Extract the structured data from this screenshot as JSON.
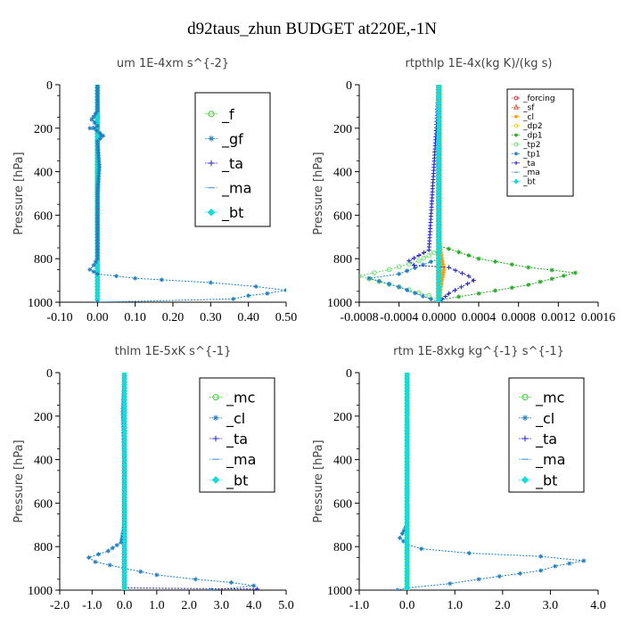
{
  "figure": {
    "title": "d92taus_zhun  BUDGET at220E,-1N"
  },
  "chart_data": [
    {
      "type": "line",
      "title": "um   1E-4xm s^{-2}",
      "ylabel": "Pressure [hPa]",
      "xlim": [
        -0.1,
        0.5
      ],
      "ylim": [
        1000,
        0
      ],
      "xticks": [
        "-0.10",
        "0.00",
        "0.10",
        "0.20",
        "0.30",
        "0.40",
        "0.50"
      ],
      "xtick_values": [
        -0.1,
        0.0,
        0.1,
        0.2,
        0.3,
        0.4,
        0.5
      ],
      "yticks": [
        "0",
        "200",
        "400",
        "600",
        "800",
        "1000"
      ],
      "ytick_values": [
        0,
        200,
        400,
        600,
        800,
        1000
      ],
      "legend_position": "top-right",
      "series": [
        {
          "name": "_f",
          "color": "#22cc22",
          "marker": "circle",
          "points": [
            [
              0.0,
              0
            ],
            [
              0.0,
              100
            ],
            [
              0.0,
              200
            ],
            [
              0.0,
              300
            ],
            [
              0.0,
              400
            ],
            [
              0.0,
              500
            ],
            [
              0.0,
              600
            ],
            [
              0.0,
              700
            ],
            [
              0.0,
              800
            ],
            [
              0.0,
              900
            ],
            [
              0.0,
              1000
            ]
          ]
        },
        {
          "name": "_gf",
          "color": "#1f7fbf",
          "marker": "star",
          "points": [
            [
              0.0,
              0
            ],
            [
              0.0,
              150
            ],
            [
              -0.015,
              160
            ],
            [
              0.0,
              180
            ],
            [
              -0.02,
              200
            ],
            [
              0.0,
              215
            ],
            [
              0.01,
              235
            ],
            [
              0.0,
              250
            ],
            [
              0.0,
              380
            ],
            [
              0.0,
              500
            ],
            [
              0.0,
              800
            ],
            [
              0.0,
              1000
            ]
          ]
        },
        {
          "name": "_ta",
          "color": "#2222cc",
          "marker": "plus",
          "points": [
            [
              0.0,
              0
            ],
            [
              0.0,
              1000
            ]
          ]
        },
        {
          "name": "_ma",
          "color": "#5aa0d8",
          "marker": "dash",
          "points": [
            [
              0.0,
              0
            ],
            [
              0.0,
              1000
            ]
          ]
        },
        {
          "name": "_bt",
          "color": "#11dddd",
          "marker": "diamond",
          "points": [
            [
              0.0,
              0
            ],
            [
              0.0,
              1000
            ]
          ]
        },
        {
          "name": "",
          "color": "#1f7fbf",
          "marker": "star",
          "points": [
            [
              0.0,
              0
            ],
            [
              0.0,
              120
            ],
            [
              -0.015,
              160
            ],
            [
              0.0,
              190
            ],
            [
              -0.01,
              200
            ],
            [
              0.015,
              235
            ],
            [
              0.0,
              260
            ],
            [
              0.005,
              380
            ],
            [
              0.0,
              500
            ],
            [
              0.0,
              700
            ],
            [
              0.0,
              800
            ],
            [
              -0.01,
              830
            ],
            [
              -0.02,
              850
            ],
            [
              -0.01,
              860
            ],
            [
              0.0,
              870
            ],
            [
              0.05,
              880
            ],
            [
              0.1,
              890
            ],
            [
              0.17,
              897
            ],
            [
              0.3,
              910
            ],
            [
              0.42,
              928
            ],
            [
              0.5,
              945
            ],
            [
              0.45,
              960
            ],
            [
              0.4,
              970
            ],
            [
              0.36,
              985
            ],
            [
              0.0,
              1000
            ]
          ]
        }
      ]
    },
    {
      "type": "line",
      "title": "rtpthlp   1E-4x(kg K)/(kg s)",
      "ylabel": "Pressure [hPa]",
      "xlim": [
        -0.0008,
        0.0016
      ],
      "ylim": [
        1000,
        0
      ],
      "xticks": [
        "-0.0008",
        "-0.0004",
        "0.0000",
        "0.0004",
        "0.0008",
        "0.0012",
        "0.0016"
      ],
      "xtick_values": [
        -0.0008,
        -0.0004,
        0.0,
        0.0004,
        0.0008,
        0.0012,
        0.0016
      ],
      "yticks": [
        "0",
        "200",
        "400",
        "600",
        "800",
        "1000"
      ],
      "ytick_values": [
        0,
        200,
        400,
        600,
        800,
        1000
      ],
      "legend_position": "top-right",
      "series": [
        {
          "name": "_forcing",
          "color": "#dd2222",
          "marker": "circle",
          "points": [
            [
              0.0,
              0
            ],
            [
              0.0,
              1000
            ]
          ]
        },
        {
          "name": "_sf",
          "color": "#dd4422",
          "marker": "triangle",
          "points": [
            [
              0.0,
              0
            ],
            [
              0.0,
              1000
            ]
          ]
        },
        {
          "name": "_cl",
          "color": "#ff9900",
          "marker": "star",
          "points": [
            [
              0.0,
              0
            ],
            [
              0.0,
              700
            ],
            [
              3e-05,
              800
            ],
            [
              5e-05,
              850
            ],
            [
              3e-05,
              900
            ],
            [
              0.0,
              1000
            ]
          ]
        },
        {
          "name": "_dp2",
          "color": "#eecc00",
          "marker": "circle",
          "points": [
            [
              0.0,
              0
            ],
            [
              0.0,
              1000
            ]
          ]
        },
        {
          "name": "_dp1",
          "color": "#22aa22",
          "marker": "star",
          "points": [
            [
              0.0,
              0
            ],
            [
              0.0,
              740
            ],
            [
              0.0004,
              800
            ],
            [
              0.0009,
              840
            ],
            [
              0.00137,
              865
            ],
            [
              0.0009,
              920
            ],
            [
              0.0004,
              960
            ],
            [
              0.0,
              990
            ]
          ]
        },
        {
          "name": "_tp2",
          "color": "#66dd66",
          "marker": "circle",
          "points": [
            [
              0.0,
              0
            ],
            [
              0.0,
              760
            ],
            [
              -0.0002,
              810
            ],
            [
              -0.0005,
              850
            ],
            [
              -0.0008,
              880
            ],
            [
              -0.0004,
              930
            ],
            [
              -0.0001,
              970
            ],
            [
              0.0,
              990
            ]
          ]
        },
        {
          "name": "_tp1",
          "color": "#1f7fbf",
          "marker": "star",
          "points": [
            [
              0.0,
              0
            ],
            [
              0.0,
              800
            ],
            [
              -0.0004,
              870
            ],
            [
              -0.0007,
              890
            ],
            [
              -0.0004,
              930
            ],
            [
              0.0,
              1000
            ]
          ]
        },
        {
          "name": "_ta",
          "color": "#2222cc",
          "marker": "plus",
          "points": [
            [
              0.0,
              0
            ],
            [
              -0.0001,
              760
            ],
            [
              -0.0003,
              810
            ],
            [
              -0.00025,
              830
            ],
            [
              0.0001,
              840
            ],
            [
              0.0003,
              880
            ],
            [
              0.00035,
              900
            ],
            [
              0.0001,
              960
            ],
            [
              0.0,
              1000
            ]
          ]
        },
        {
          "name": "_ma",
          "color": "#5aa0d8",
          "marker": "dash",
          "points": [
            [
              0.0,
              0
            ],
            [
              0.0,
              1000
            ]
          ]
        },
        {
          "name": "_bt",
          "color": "#11dddd",
          "marker": "diamond",
          "points": [
            [
              0.0,
              0
            ],
            [
              0.0,
              1000
            ]
          ]
        }
      ]
    },
    {
      "type": "line",
      "title": "thlm   1E-5xK s^{-1}",
      "ylabel": "Pressure [hPa]",
      "xlim": [
        -2.0,
        5.0
      ],
      "ylim": [
        1000,
        0
      ],
      "xticks": [
        "-2.0",
        "-1.0",
        "0.0",
        "1.0",
        "2.0",
        "3.0",
        "4.0",
        "5.0"
      ],
      "xtick_values": [
        -2.0,
        -1.0,
        0.0,
        1.0,
        2.0,
        3.0,
        4.0,
        5.0
      ],
      "yticks": [
        "0",
        "200",
        "400",
        "600",
        "800",
        "1000"
      ],
      "ytick_values": [
        0,
        200,
        400,
        600,
        800,
        1000
      ],
      "legend_position": "top-right",
      "series": [
        {
          "name": "_mc",
          "color": "#22cc22",
          "marker": "circle",
          "points": [
            [
              0.0,
              0
            ],
            [
              0.0,
              1000
            ]
          ]
        },
        {
          "name": "_cl",
          "color": "#1f7fbf",
          "marker": "star",
          "points": [
            [
              0.0,
              0
            ],
            [
              -0.05,
              180
            ],
            [
              0.0,
              400
            ],
            [
              0.0,
              700
            ],
            [
              -0.1,
              780
            ],
            [
              -0.5,
              820
            ],
            [
              -1.1,
              850
            ],
            [
              -0.9,
              870
            ],
            [
              0.0,
              900
            ],
            [
              1.0,
              930
            ],
            [
              2.2,
              950
            ],
            [
              3.3,
              965
            ],
            [
              4.0,
              980
            ],
            [
              2.7,
              1000
            ]
          ]
        },
        {
          "name": "_ta",
          "color": "#2222cc",
          "marker": "plus",
          "points": [
            [
              0.0,
              0
            ],
            [
              0.0,
              990
            ],
            [
              4.1,
              995
            ]
          ]
        },
        {
          "name": "_ma",
          "color": "#5aa0d8",
          "marker": "dash",
          "points": [
            [
              0.0,
              0
            ],
            [
              0.0,
              1000
            ]
          ]
        },
        {
          "name": "_bt",
          "color": "#11dddd",
          "marker": "diamond",
          "points": [
            [
              0.0,
              0
            ],
            [
              0.0,
              1000
            ]
          ]
        }
      ]
    },
    {
      "type": "line",
      "title": "rtm   1E-8xkg kg^{-1} s^{-1}",
      "ylabel": "Pressure [hPa]",
      "xlim": [
        -1.0,
        4.0
      ],
      "ylim": [
        1000,
        0
      ],
      "xticks": [
        "-1.0",
        "0.0",
        "1.0",
        "2.0",
        "3.0",
        "4.0"
      ],
      "xtick_values": [
        -1.0,
        0.0,
        1.0,
        2.0,
        3.0,
        4.0
      ],
      "yticks": [
        "0",
        "200",
        "400",
        "600",
        "800",
        "1000"
      ],
      "ytick_values": [
        0,
        200,
        400,
        600,
        800,
        1000
      ],
      "legend_position": "top-right",
      "series": [
        {
          "name": "_mc",
          "color": "#22cc22",
          "marker": "circle",
          "points": [
            [
              0.0,
              0
            ],
            [
              0.0,
              1000
            ]
          ]
        },
        {
          "name": "_cl",
          "color": "#1f7fbf",
          "marker": "star",
          "points": [
            [
              0.0,
              0
            ],
            [
              0.0,
              300
            ],
            [
              0.0,
              700
            ],
            [
              -0.1,
              740
            ],
            [
              -0.15,
              760
            ],
            [
              0.0,
              790
            ],
            [
              0.3,
              810
            ],
            [
              1.3,
              830
            ],
            [
              2.8,
              845
            ],
            [
              3.7,
              865
            ],
            [
              3.1,
              890
            ],
            [
              2.8,
              910
            ],
            [
              1.5,
              950
            ],
            [
              0.9,
              970
            ],
            [
              0.0,
              990
            ],
            [
              -0.2,
              1000
            ]
          ]
        },
        {
          "name": "_ta",
          "color": "#2222cc",
          "marker": "plus",
          "points": [
            [
              0.0,
              0
            ],
            [
              0.0,
              1000
            ]
          ]
        },
        {
          "name": "_ma",
          "color": "#5aa0d8",
          "marker": "dash",
          "points": [
            [
              0.0,
              0
            ],
            [
              0.0,
              1000
            ]
          ]
        },
        {
          "name": "_bt",
          "color": "#11dddd",
          "marker": "diamond",
          "points": [
            [
              0.0,
              0
            ],
            [
              0.0,
              1000
            ]
          ]
        }
      ]
    }
  ]
}
